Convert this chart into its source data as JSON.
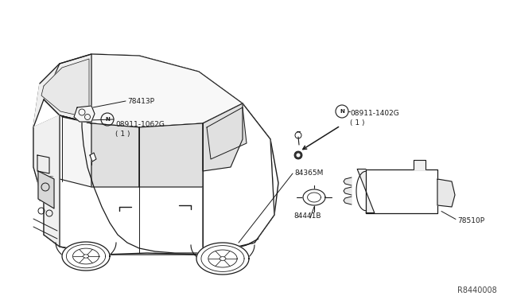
{
  "background_color": "#ffffff",
  "fig_width": 6.4,
  "fig_height": 3.72,
  "dpi": 100,
  "diagram_ref": "R8440008",
  "text_color": "#1a1a1a",
  "line_color": "#1a1a1a",
  "part_fontsize": 6.5,
  "ref_fontsize": 7,
  "N_badge_r": 0.012,
  "label_08911_1402G": "08911-1402G\n( 1 )",
  "label_84365M": "84365M",
  "label_84441B": "84441B",
  "label_78510P": "78510P",
  "label_78413P": "78413P",
  "label_08911_1062G": "08911-1062G\n( 1 )"
}
